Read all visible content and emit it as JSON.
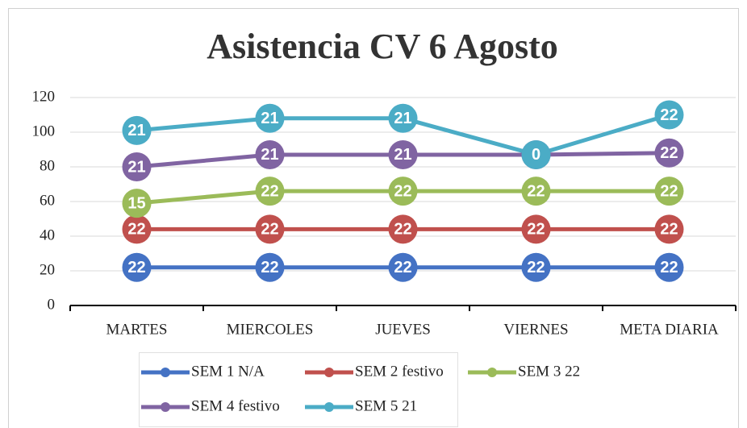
{
  "chart_data": {
    "type": "line",
    "stacked": true,
    "title": "Asistencia CV 6 Agosto",
    "categories": [
      "MARTES",
      "MIERCOLES",
      "JUEVES",
      "VIERNES",
      "META DIARIA"
    ],
    "series": [
      {
        "name": "SEM 1 N/A",
        "color": "#4472c4",
        "values": [
          22,
          22,
          22,
          22,
          22
        ]
      },
      {
        "name": "SEM 2 festivo",
        "color": "#c0504d",
        "values": [
          22,
          22,
          22,
          22,
          22
        ]
      },
      {
        "name": "SEM 3 22",
        "color": "#9bbb59",
        "values": [
          15,
          22,
          22,
          22,
          22
        ]
      },
      {
        "name": "SEM 4 festivo",
        "color": "#8064a2",
        "values": [
          21,
          21,
          21,
          21,
          22
        ]
      },
      {
        "name": "SEM 5 21",
        "color": "#4bacc6",
        "values": [
          21,
          21,
          21,
          0,
          22
        ]
      }
    ],
    "ylim": [
      0,
      120
    ],
    "yticks": [
      0,
      20,
      40,
      60,
      80,
      100,
      120
    ],
    "grid": true,
    "legend": "bottom"
  }
}
